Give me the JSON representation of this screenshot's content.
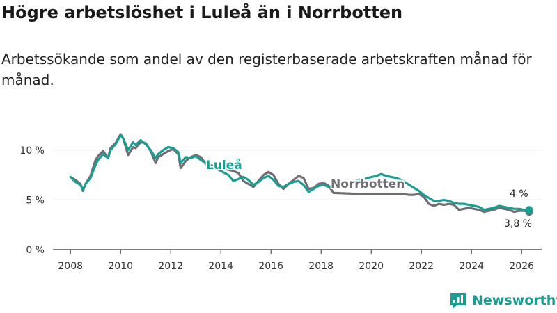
{
  "title": "Högre arbetslöshet i Luleå än i Norrbotten",
  "subtitle": "Arbetssökande som andel av den registerbaserade arbetskraften månad för månad.",
  "brand": {
    "name": "Newsworthy",
    "color": "#1a9e93",
    "icon": "newsworthy-logo-icon"
  },
  "colors": {
    "lulea": "#1a9e93",
    "norrbotten": "#6e6e73",
    "grid": "#d9d9d9",
    "axis": "#333333"
  },
  "chart_data": {
    "type": "line",
    "title": "Högre arbetslöshet i Luleå än i Norrbotten",
    "xlabel": "",
    "ylabel": "",
    "xlim": [
      2007.3,
      2026.8
    ],
    "ylim": [
      0,
      11.8
    ],
    "y_ticks": [
      0,
      5,
      10
    ],
    "y_tick_labels": [
      "0 %",
      "5 %",
      "10 %"
    ],
    "x_ticks": [
      2008,
      2010,
      2012,
      2014,
      2016,
      2018,
      2020,
      2022,
      2024,
      2026
    ],
    "x_tick_labels": [
      "2008",
      "2010",
      "2012",
      "2014",
      "2016",
      "2018",
      "2020",
      "2022",
      "2024",
      "2026"
    ],
    "grid": true,
    "series": [
      {
        "name": "Norrbotten",
        "label": "Norrbotten",
        "end_label": "3,8 %",
        "x": [
          2008.0,
          2008.2,
          2008.4,
          2008.5,
          2008.6,
          2008.8,
          2009.0,
          2009.1,
          2009.3,
          2009.5,
          2009.6,
          2009.8,
          2010.0,
          2010.1,
          2010.3,
          2010.5,
          2010.6,
          2010.8,
          2011.0,
          2011.2,
          2011.4,
          2011.5,
          2011.7,
          2011.9,
          2012.1,
          2012.3,
          2012.4,
          2012.6,
          2012.8,
          2013.0,
          2013.2,
          2013.4,
          2014.5,
          2014.7,
          2014.9,
          2015.1,
          2015.3,
          2015.5,
          2015.7,
          2015.9,
          2016.1,
          2016.3,
          2016.5,
          2016.7,
          2016.9,
          2017.1,
          2017.3,
          2017.5,
          2017.7,
          2017.9,
          2018.1,
          2018.3,
          2018.5,
          2019.5,
          2021.3,
          2021.5,
          2021.7,
          2021.9,
          2022.1,
          2022.3,
          2022.5,
          2022.7,
          2022.9,
          2023.1,
          2023.3,
          2023.5,
          2023.7,
          2023.9,
          2024.1,
          2024.3,
          2024.5,
          2024.7,
          2024.9,
          2025.1,
          2025.3,
          2025.5,
          2025.7,
          2025.9,
          2026.1,
          2026.3
        ],
        "values": [
          7.3,
          7.0,
          6.6,
          5.9,
          6.6,
          7.4,
          9.0,
          9.4,
          9.9,
          9.2,
          10.2,
          10.7,
          11.6,
          11.2,
          9.5,
          10.3,
          10.2,
          10.8,
          10.7,
          9.9,
          8.7,
          9.3,
          9.6,
          9.9,
          10.1,
          9.6,
          8.2,
          8.9,
          9.3,
          9.5,
          9.3,
          8.6,
          7.9,
          7.7,
          6.9,
          6.6,
          6.3,
          6.9,
          7.5,
          7.8,
          7.5,
          6.6,
          6.1,
          6.6,
          7.0,
          7.4,
          7.2,
          6.1,
          6.2,
          6.6,
          6.7,
          6.4,
          5.7,
          5.6,
          5.6,
          5.5,
          5.5,
          5.6,
          5.3,
          4.6,
          4.4,
          4.6,
          4.5,
          4.6,
          4.5,
          4.0,
          4.1,
          4.2,
          4.1,
          4.0,
          3.8,
          3.9,
          4.0,
          4.2,
          4.1,
          4.0,
          3.8,
          3.9,
          3.9,
          3.8
        ]
      },
      {
        "name": "Luleå",
        "label": "Luleå",
        "end_label": "4 %",
        "x": [
          2008.0,
          2008.2,
          2008.4,
          2008.5,
          2008.6,
          2008.8,
          2009.0,
          2009.1,
          2009.3,
          2009.5,
          2009.6,
          2009.8,
          2010.0,
          2010.1,
          2010.3,
          2010.5,
          2010.6,
          2010.8,
          2011.0,
          2011.2,
          2011.4,
          2011.5,
          2011.7,
          2011.9,
          2012.1,
          2012.3,
          2012.4,
          2012.6,
          2012.8,
          2013.0,
          2013.2,
          2013.4,
          2014.3,
          2014.5,
          2014.7,
          2014.9,
          2015.1,
          2015.3,
          2015.5,
          2015.7,
          2015.9,
          2016.1,
          2016.3,
          2016.5,
          2016.7,
          2016.9,
          2017.1,
          2017.3,
          2017.5,
          2017.7,
          2017.9,
          2018.1,
          2018.3,
          2020.2,
          2020.4,
          2020.6,
          2020.8,
          2021.0,
          2021.2,
          2021.9,
          2022.1,
          2022.3,
          2022.5,
          2022.7,
          2022.9,
          2023.1,
          2023.3,
          2023.5,
          2023.7,
          2023.9,
          2024.1,
          2024.3,
          2024.5,
          2024.7,
          2024.9,
          2025.1,
          2025.3,
          2025.5,
          2025.7,
          2025.9,
          2026.1,
          2026.3
        ],
        "values": [
          7.3,
          6.8,
          6.5,
          6.0,
          6.6,
          7.2,
          8.5,
          9.0,
          9.6,
          9.2,
          10.0,
          10.6,
          11.5,
          11.2,
          10.0,
          10.8,
          10.5,
          11.0,
          10.6,
          10.0,
          9.2,
          9.6,
          10.0,
          10.3,
          10.2,
          9.8,
          8.7,
          9.3,
          9.2,
          9.4,
          9.0,
          8.7,
          7.5,
          6.9,
          7.1,
          7.3,
          7.0,
          6.5,
          6.8,
          7.2,
          7.4,
          7.0,
          6.4,
          6.3,
          6.6,
          6.8,
          6.9,
          6.5,
          5.8,
          6.1,
          6.4,
          6.5,
          6.3,
          7.4,
          7.6,
          7.4,
          7.3,
          7.2,
          7.0,
          5.9,
          5.5,
          5.2,
          4.9,
          4.9,
          5.0,
          4.9,
          4.7,
          4.6,
          4.6,
          4.5,
          4.4,
          4.3,
          4.0,
          4.1,
          4.2,
          4.4,
          4.3,
          4.2,
          4.1,
          4.1,
          4.0,
          4.0
        ]
      }
    ]
  }
}
